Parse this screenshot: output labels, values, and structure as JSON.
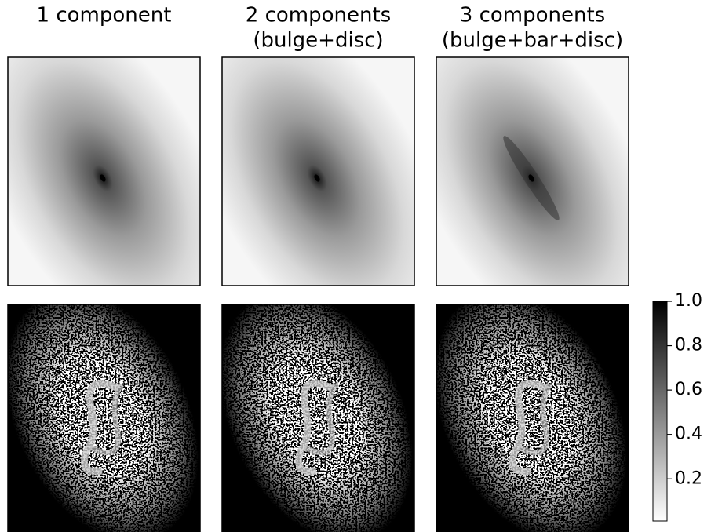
{
  "chart_data": {
    "type": "image",
    "panels": [
      {
        "title": [
          "1 component"
        ]
      },
      {
        "title": [
          "2 components",
          "(bulge+disc)"
        ]
      },
      {
        "title": [
          "3 components",
          "(bulge+bar+disc)"
        ]
      }
    ],
    "colormap": "gray_r",
    "clim": [
      0.01,
      1
    ],
    "cticks": [
      0.2,
      0.4,
      0.6,
      0.8,
      {
        "value": 1,
        "label": "1.0"
      }
    ]
  }
}
